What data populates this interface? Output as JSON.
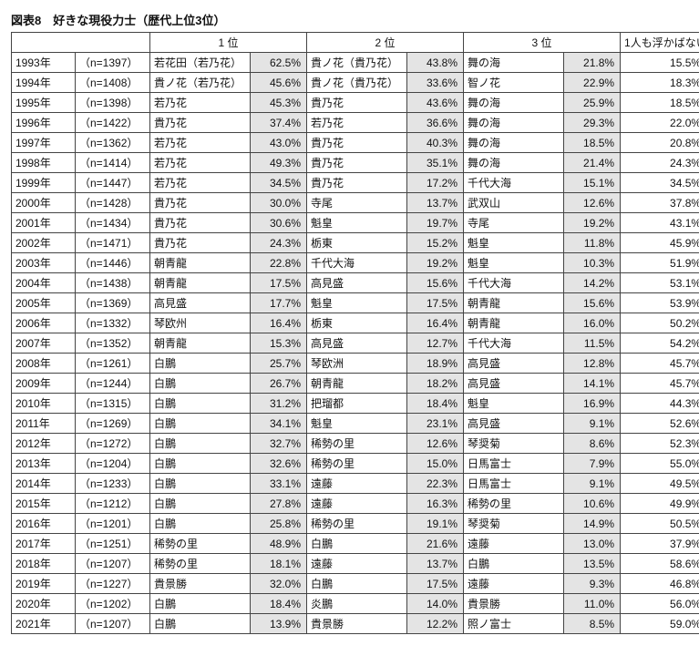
{
  "title": "図表8　好きな現役力士（歴代上位3位）",
  "headers": {
    "rank1": "1 位",
    "rank2": "2 位",
    "rank3": "3 位",
    "none": "1人も浮かばない"
  },
  "colors": {
    "shaded_bg": "#e4e4e4",
    "border": "#444444",
    "text": "#111111",
    "background": "#ffffff"
  },
  "rows": [
    {
      "year": "1993年",
      "n": "（n=1397）",
      "r1": "若花田（若乃花）",
      "p1": "62.5%",
      "r2": "貴ノ花（貴乃花）",
      "p2": "43.8%",
      "r3": "舞の海",
      "p3": "21.8%",
      "none": "15.5%"
    },
    {
      "year": "1994年",
      "n": "（n=1408）",
      "r1": "貴ノ花（若乃花）",
      "p1": "45.6%",
      "r2": "貴ノ花（貴乃花）",
      "p2": "33.6%",
      "r3": "智ノ花",
      "p3": "22.9%",
      "none": "18.3%"
    },
    {
      "year": "1995年",
      "n": "（n=1398）",
      "r1": "若乃花",
      "p1": "45.3%",
      "r2": "貴乃花",
      "p2": "43.6%",
      "r3": "舞の海",
      "p3": "25.9%",
      "none": "18.5%"
    },
    {
      "year": "1996年",
      "n": "（n=1422）",
      "r1": "貴乃花",
      "p1": "37.4%",
      "r2": "若乃花",
      "p2": "36.6%",
      "r3": "舞の海",
      "p3": "29.3%",
      "none": "22.0%"
    },
    {
      "year": "1997年",
      "n": "（n=1362）",
      "r1": "若乃花",
      "p1": "43.0%",
      "r2": "貴乃花",
      "p2": "40.3%",
      "r3": "舞の海",
      "p3": "18.5%",
      "none": "20.8%"
    },
    {
      "year": "1998年",
      "n": "（n=1414）",
      "r1": "若乃花",
      "p1": "49.3%",
      "r2": "貴乃花",
      "p2": "35.1%",
      "r3": "舞の海",
      "p3": "21.4%",
      "none": "24.3%"
    },
    {
      "year": "1999年",
      "n": "（n=1447）",
      "r1": "若乃花",
      "p1": "34.5%",
      "r2": "貴乃花",
      "p2": "17.2%",
      "r3": "千代大海",
      "p3": "15.1%",
      "none": "34.5%"
    },
    {
      "year": "2000年",
      "n": "（n=1428）",
      "r1": "貴乃花",
      "p1": "30.0%",
      "r2": "寺尾",
      "p2": "13.7%",
      "r3": "武双山",
      "p3": "12.6%",
      "none": "37.8%"
    },
    {
      "year": "2001年",
      "n": "（n=1434）",
      "r1": "貴乃花",
      "p1": "30.6%",
      "r2": "魁皇",
      "p2": "19.7%",
      "r3": "寺尾",
      "p3": "19.2%",
      "none": "43.1%"
    },
    {
      "year": "2002年",
      "n": "（n=1471）",
      "r1": "貴乃花",
      "p1": "24.3%",
      "r2": "栃東",
      "p2": "15.2%",
      "r3": "魁皇",
      "p3": "11.8%",
      "none": "45.9%"
    },
    {
      "year": "2003年",
      "n": "（n=1446）",
      "r1": "朝青龍",
      "p1": "22.8%",
      "r2": "千代大海",
      "p2": "19.2%",
      "r3": "魁皇",
      "p3": "10.3%",
      "none": "51.9%"
    },
    {
      "year": "2004年",
      "n": "（n=1438）",
      "r1": "朝青龍",
      "p1": "17.5%",
      "r2": "高見盛",
      "p2": "15.6%",
      "r3": "千代大海",
      "p3": "14.2%",
      "none": "53.1%"
    },
    {
      "year": "2005年",
      "n": "（n=1369）",
      "r1": "高見盛",
      "p1": "17.7%",
      "r2": "魁皇",
      "p2": "17.5%",
      "r3": "朝青龍",
      "p3": "15.6%",
      "none": "53.9%"
    },
    {
      "year": "2006年",
      "n": "（n=1332）",
      "r1": "琴欧州",
      "p1": "16.4%",
      "r2": "栃東",
      "p2": "16.4%",
      "r3": "朝青龍",
      "p3": "16.0%",
      "none": "50.2%"
    },
    {
      "year": "2007年",
      "n": "（n=1352）",
      "r1": "朝青龍",
      "p1": "15.3%",
      "r2": "高見盛",
      "p2": "12.7%",
      "r3": "千代大海",
      "p3": "11.5%",
      "none": "54.2%"
    },
    {
      "year": "2008年",
      "n": "（n=1261）",
      "r1": "白鵬",
      "p1": "25.7%",
      "r2": "琴欧洲",
      "p2": "18.9%",
      "r3": "高見盛",
      "p3": "12.8%",
      "none": "45.7%"
    },
    {
      "year": "2009年",
      "n": "（n=1244）",
      "r1": "白鵬",
      "p1": "26.7%",
      "r2": "朝青龍",
      "p2": "18.2%",
      "r3": "高見盛",
      "p3": "14.1%",
      "none": "45.7%"
    },
    {
      "year": "2010年",
      "n": "（n=1315）",
      "r1": "白鵬",
      "p1": "31.2%",
      "r2": "把瑠都",
      "p2": "18.4%",
      "r3": "魁皇",
      "p3": "16.9%",
      "none": "44.3%"
    },
    {
      "year": "2011年",
      "n": "（n=1269）",
      "r1": "白鵬",
      "p1": "34.1%",
      "r2": "魁皇",
      "p2": "23.1%",
      "r3": "高見盛",
      "p3": "9.1%",
      "none": "52.6%"
    },
    {
      "year": "2012年",
      "n": "（n=1272）",
      "r1": "白鵬",
      "p1": "32.7%",
      "r2": "稀勢の里",
      "p2": "12.6%",
      "r3": "琴奨菊",
      "p3": "8.6%",
      "none": "52.3%"
    },
    {
      "year": "2013年",
      "n": "（n=1204）",
      "r1": "白鵬",
      "p1": "32.6%",
      "r2": "稀勢の里",
      "p2": "15.0%",
      "r3": "日馬富士",
      "p3": "7.9%",
      "none": "55.0%"
    },
    {
      "year": "2014年",
      "n": "（n=1233）",
      "r1": "白鵬",
      "p1": "33.1%",
      "r2": "遠藤",
      "p2": "22.3%",
      "r3": "日馬富士",
      "p3": "9.1%",
      "none": "49.5%"
    },
    {
      "year": "2015年",
      "n": "（n=1212）",
      "r1": "白鵬",
      "p1": "27.8%",
      "r2": "遠藤",
      "p2": "16.3%",
      "r3": "稀勢の里",
      "p3": "10.6%",
      "none": "49.9%"
    },
    {
      "year": "2016年",
      "n": "（n=1201）",
      "r1": "白鵬",
      "p1": "25.8%",
      "r2": "稀勢の里",
      "p2": "19.1%",
      "r3": "琴奨菊",
      "p3": "14.9%",
      "none": "50.5%"
    },
    {
      "year": "2017年",
      "n": "（n=1251）",
      "r1": "稀勢の里",
      "p1": "48.9%",
      "r2": "白鵬",
      "p2": "21.6%",
      "r3": "遠藤",
      "p3": "13.0%",
      "none": "37.9%"
    },
    {
      "year": "2018年",
      "n": "（n=1207）",
      "r1": "稀勢の里",
      "p1": "18.1%",
      "r2": "遠藤",
      "p2": "13.7%",
      "r3": "白鵬",
      "p3": "13.5%",
      "none": "58.6%"
    },
    {
      "year": "2019年",
      "n": "（n=1227）",
      "r1": "貴景勝",
      "p1": "32.0%",
      "r2": "白鵬",
      "p2": "17.5%",
      "r3": "遠藤",
      "p3": "9.3%",
      "none": "46.8%"
    },
    {
      "year": "2020年",
      "n": "（n=1202）",
      "r1": "白鵬",
      "p1": "18.4%",
      "r2": "炎鵬",
      "p2": "14.0%",
      "r3": "貴景勝",
      "p3": "11.0%",
      "none": "56.0%"
    },
    {
      "year": "2021年",
      "n": "（n=1207）",
      "r1": "白鵬",
      "p1": "13.9%",
      "r2": "貴景勝",
      "p2": "12.2%",
      "r3": "照ノ富士",
      "p3": "8.5%",
      "none": "59.0%"
    }
  ]
}
